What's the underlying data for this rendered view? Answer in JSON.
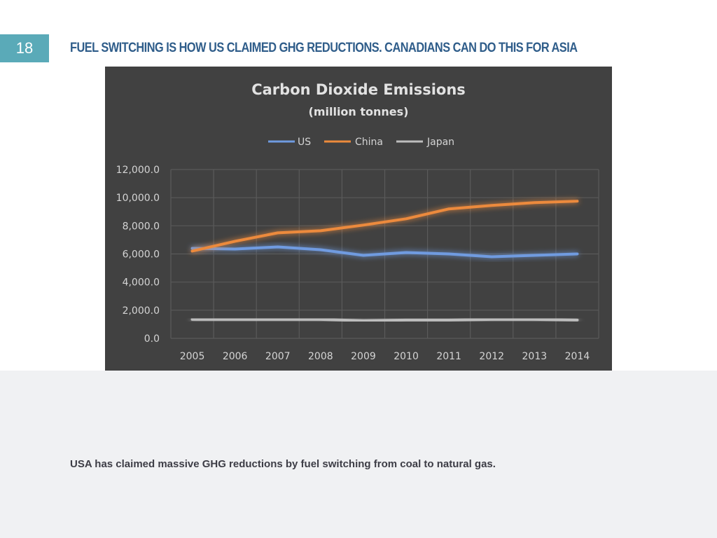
{
  "slide": {
    "number": "18",
    "title": "FUEL SWITCHING IS HOW US CLAIMED GHG REDUCTIONS. CANADIANS CAN DO THIS FOR ASIA",
    "caption": "USA has claimed massive GHG reductions by fuel switching from coal to natural gas.",
    "colors": {
      "accent": "#5aaab8",
      "title": "#2f5d8a",
      "chart_background": "#414141"
    }
  },
  "chart_data": {
    "type": "line",
    "title": "Carbon Dioxide Emissions",
    "subtitle": "(million tonnes)",
    "xlabel": "",
    "ylabel": "",
    "x": [
      "2005",
      "2006",
      "2007",
      "2008",
      "2009",
      "2010",
      "2011",
      "2012",
      "2013",
      "2014"
    ],
    "ylim": [
      0,
      12000
    ],
    "yticks": [
      0,
      2000,
      4000,
      6000,
      8000,
      10000,
      12000
    ],
    "ytick_labels": [
      "0.0",
      "2,000.0",
      "4,000.0",
      "6,000.0",
      "8,000.0",
      "10,000.0",
      "12,000.0"
    ],
    "grid": true,
    "legend_position": "top",
    "series": [
      {
        "name": "US",
        "color": "#6f9be0",
        "values": [
          6400,
          6350,
          6500,
          6300,
          5900,
          6100,
          6000,
          5800,
          5900,
          6000
        ]
      },
      {
        "name": "China",
        "color": "#ec8a3c",
        "values": [
          6200,
          6900,
          7500,
          7650,
          8050,
          8500,
          9200,
          9450,
          9650,
          9750
        ]
      },
      {
        "name": "Japan",
        "color": "#bdbdbd",
        "values": [
          1350,
          1350,
          1350,
          1350,
          1250,
          1300,
          1300,
          1350,
          1350,
          1300
        ]
      }
    ]
  }
}
